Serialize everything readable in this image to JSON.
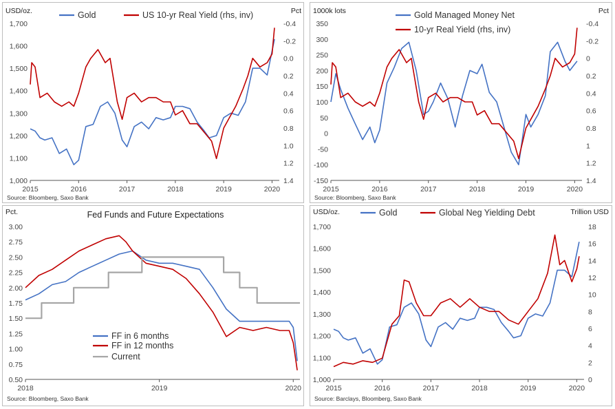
{
  "colors": {
    "blue": "#4472c4",
    "red": "#c00000",
    "gray": "#a6a6a6",
    "axis": "#555555"
  },
  "chart_data": [
    {
      "type": "line",
      "title": "",
      "ylabel_left": "USD/oz.",
      "ylabel_right": "Pct",
      "xlim": [
        2015.0,
        2020.15
      ],
      "x_ticks": [
        2015,
        2016,
        2017,
        2018,
        2019,
        2020
      ],
      "x_tick_labels": [
        "2015",
        "2016",
        "2017",
        "2018",
        "2019",
        "2020"
      ],
      "ylim_left": [
        1000,
        1700
      ],
      "y_ticks_left": [
        1000,
        1100,
        1200,
        1300,
        1400,
        1500,
        1600,
        1700
      ],
      "y_tick_labels_left": [
        "1,000",
        "1,100",
        "1,200",
        "1,300",
        "1,400",
        "1,500",
        "1,600",
        "1,700"
      ],
      "ylim_right": [
        1.4,
        -0.4
      ],
      "right_axis_inverted": true,
      "y_ticks_right": [
        -0.4,
        -0.2,
        0.0,
        0.2,
        0.4,
        0.6,
        0.8,
        1.0,
        1.2,
        1.4
      ],
      "y_tick_labels_right": [
        "-0.4",
        "-0.2",
        "0.0",
        "0.2",
        "0.4",
        "0.6",
        "0.8",
        "1.0",
        "1.2",
        "1.4"
      ],
      "source": "Source: Bloomberg, Saxo Bank",
      "series": [
        {
          "name": "Gold",
          "axis": "left",
          "color": "#4472c4",
          "x": [
            2015.0,
            2015.1,
            2015.2,
            2015.3,
            2015.45,
            2015.6,
            2015.75,
            2015.9,
            2016.0,
            2016.15,
            2016.3,
            2016.45,
            2016.6,
            2016.75,
            2016.9,
            2017.0,
            2017.15,
            2017.3,
            2017.45,
            2017.6,
            2017.75,
            2017.9,
            2018.0,
            2018.15,
            2018.3,
            2018.45,
            2018.6,
            2018.7,
            2018.85,
            2019.0,
            2019.15,
            2019.3,
            2019.45,
            2019.6,
            2019.75,
            2019.9,
            2020.05
          ],
          "values": [
            1230,
            1220,
            1190,
            1180,
            1190,
            1120,
            1140,
            1070,
            1090,
            1240,
            1250,
            1330,
            1350,
            1300,
            1180,
            1150,
            1240,
            1260,
            1230,
            1280,
            1270,
            1280,
            1330,
            1330,
            1320,
            1260,
            1220,
            1190,
            1200,
            1280,
            1300,
            1290,
            1350,
            1500,
            1500,
            1470,
            1630
          ]
        },
        {
          "name": "US 10-yr Real Yield (rhs, inv)",
          "axis": "right",
          "color": "#c00000",
          "x": [
            2015.0,
            2015.03,
            2015.1,
            2015.2,
            2015.35,
            2015.5,
            2015.65,
            2015.8,
            2015.9,
            2016.0,
            2016.15,
            2016.25,
            2016.4,
            2016.55,
            2016.65,
            2016.8,
            2016.9,
            2017.0,
            2017.15,
            2017.3,
            2017.45,
            2017.6,
            2017.75,
            2017.9,
            2018.0,
            2018.15,
            2018.3,
            2018.45,
            2018.6,
            2018.75,
            2018.85,
            2019.0,
            2019.1,
            2019.25,
            2019.4,
            2019.5,
            2019.6,
            2019.75,
            2019.9,
            2020.0,
            2020.05
          ],
          "values": [
            0.3,
            0.05,
            0.1,
            0.45,
            0.4,
            0.5,
            0.55,
            0.5,
            0.55,
            0.4,
            0.1,
            0.0,
            -0.1,
            0.05,
            0.0,
            0.5,
            0.7,
            0.45,
            0.4,
            0.5,
            0.45,
            0.45,
            0.5,
            0.5,
            0.65,
            0.6,
            0.75,
            0.75,
            0.85,
            0.95,
            1.15,
            0.8,
            0.7,
            0.55,
            0.35,
            0.2,
            0.0,
            0.1,
            0.05,
            -0.05,
            -0.35
          ]
        }
      ]
    },
    {
      "type": "line",
      "title": "",
      "ylabel_left": "1000k lots",
      "ylabel_right": "Pct",
      "xlim": [
        2015.0,
        2020.15
      ],
      "x_ticks": [
        2015,
        2016,
        2017,
        2018,
        2019,
        2020
      ],
      "x_tick_labels": [
        "2015",
        "2016",
        "2017",
        "2018",
        "2019",
        "2020"
      ],
      "ylim_left": [
        -150,
        350
      ],
      "y_ticks_left": [
        -150,
        -100,
        -50,
        0,
        50,
        100,
        150,
        200,
        250,
        300,
        350
      ],
      "y_tick_labels_left": [
        "-150",
        "-100",
        "-50",
        "0",
        "50",
        "100",
        "150",
        "200",
        "250",
        "300",
        "350"
      ],
      "ylim_right": [
        1.4,
        -0.4
      ],
      "right_axis_inverted": true,
      "y_ticks_right": [
        -0.4,
        -0.2,
        0.0,
        0.2,
        0.4,
        0.6,
        0.8,
        1.0,
        1.2,
        1.4
      ],
      "y_tick_labels_right": [
        "-0.4",
        "-0.2",
        "0",
        "0.2",
        "0.4",
        "0.6",
        "0.8",
        "1",
        "1.2",
        "1.4"
      ],
      "source": "Source: Bloomberg, Saxo Bank",
      "series": [
        {
          "name": "Gold Managed Money Net",
          "axis": "left",
          "color": "#4472c4",
          "x": [
            2015.0,
            2015.1,
            2015.2,
            2015.35,
            2015.5,
            2015.65,
            2015.8,
            2015.9,
            2016.0,
            2016.15,
            2016.3,
            2016.45,
            2016.6,
            2016.75,
            2016.9,
            2017.0,
            2017.1,
            2017.25,
            2017.4,
            2017.55,
            2017.7,
            2017.85,
            2018.0,
            2018.1,
            2018.25,
            2018.4,
            2018.55,
            2018.7,
            2018.85,
            2019.0,
            2019.1,
            2019.25,
            2019.4,
            2019.5,
            2019.65,
            2019.8,
            2019.9,
            2020.05
          ],
          "values": [
            100,
            190,
            140,
            80,
            30,
            -20,
            20,
            -30,
            10,
            160,
            210,
            270,
            290,
            200,
            60,
            70,
            100,
            160,
            110,
            20,
            120,
            200,
            190,
            220,
            130,
            100,
            20,
            -60,
            -100,
            60,
            20,
            60,
            120,
            260,
            290,
            230,
            200,
            230
          ]
        },
        {
          "name": "10-yr Real Yield (rhs, inv)",
          "axis": "right",
          "color": "#c00000",
          "x": [
            2015.0,
            2015.03,
            2015.1,
            2015.2,
            2015.35,
            2015.5,
            2015.65,
            2015.8,
            2015.9,
            2016.0,
            2016.15,
            2016.25,
            2016.4,
            2016.55,
            2016.65,
            2016.8,
            2016.9,
            2017.0,
            2017.15,
            2017.3,
            2017.45,
            2017.6,
            2017.75,
            2017.9,
            2018.0,
            2018.15,
            2018.3,
            2018.45,
            2018.6,
            2018.75,
            2018.85,
            2019.0,
            2019.1,
            2019.25,
            2019.4,
            2019.5,
            2019.6,
            2019.75,
            2019.9,
            2020.0,
            2020.05
          ],
          "values": [
            0.3,
            0.05,
            0.1,
            0.45,
            0.4,
            0.5,
            0.55,
            0.5,
            0.55,
            0.4,
            0.1,
            0.0,
            -0.1,
            0.05,
            0.0,
            0.5,
            0.7,
            0.45,
            0.4,
            0.5,
            0.45,
            0.45,
            0.5,
            0.5,
            0.65,
            0.6,
            0.75,
            0.75,
            0.85,
            0.95,
            1.15,
            0.8,
            0.7,
            0.55,
            0.35,
            0.2,
            0.0,
            0.1,
            0.05,
            -0.05,
            -0.35
          ]
        }
      ]
    },
    {
      "type": "line",
      "title": "Fed Funds and Future Expectations",
      "ylabel_left": "Pct.",
      "ylabel_right": "",
      "xlim": [
        2018.0,
        2020.05
      ],
      "x_ticks": [
        2018,
        2019,
        2020
      ],
      "x_tick_labels": [
        "2018",
        "2019",
        "2020"
      ],
      "ylim_left": [
        0.5,
        3.0
      ],
      "y_ticks_left": [
        0.5,
        0.75,
        1.0,
        1.25,
        1.5,
        1.75,
        2.0,
        2.25,
        2.5,
        2.75,
        3.0
      ],
      "y_tick_labels_left": [
        "0.50",
        "0.75",
        "1.00",
        "1.25",
        "1.50",
        "1.75",
        "2.00",
        "2.25",
        "2.50",
        "2.75",
        "3.00"
      ],
      "source": "Source: Bloomberg, Saxo Bank",
      "legend_position": "bottom-center",
      "series": [
        {
          "name": "FF in 6 months",
          "axis": "left",
          "color": "#4472c4",
          "x": [
            2018.0,
            2018.1,
            2018.2,
            2018.3,
            2018.4,
            2018.5,
            2018.6,
            2018.7,
            2018.8,
            2018.9,
            2019.0,
            2019.1,
            2019.2,
            2019.3,
            2019.4,
            2019.5,
            2019.6,
            2019.7,
            2019.8,
            2019.9,
            2019.97,
            2020.0,
            2020.03
          ],
          "values": [
            1.8,
            1.9,
            2.05,
            2.1,
            2.25,
            2.35,
            2.45,
            2.55,
            2.6,
            2.45,
            2.4,
            2.4,
            2.35,
            2.3,
            2.0,
            1.65,
            1.45,
            1.45,
            1.45,
            1.45,
            1.45,
            1.35,
            0.8
          ]
        },
        {
          "name": "FF in 12 months",
          "axis": "left",
          "color": "#c00000",
          "x": [
            2018.0,
            2018.1,
            2018.2,
            2018.3,
            2018.4,
            2018.5,
            2018.6,
            2018.7,
            2018.75,
            2018.8,
            2018.9,
            2019.0,
            2019.1,
            2019.2,
            2019.3,
            2019.4,
            2019.5,
            2019.6,
            2019.7,
            2019.8,
            2019.9,
            2019.97,
            2020.0,
            2020.03
          ],
          "values": [
            2.0,
            2.2,
            2.3,
            2.45,
            2.6,
            2.7,
            2.8,
            2.85,
            2.75,
            2.6,
            2.4,
            2.35,
            2.3,
            2.15,
            1.9,
            1.6,
            1.2,
            1.35,
            1.3,
            1.35,
            1.3,
            1.3,
            1.1,
            0.65
          ]
        },
        {
          "name": "Current",
          "axis": "left",
          "color": "#a6a6a6",
          "step": true,
          "x": [
            2018.0,
            2018.12,
            2018.12,
            2018.36,
            2018.36,
            2018.62,
            2018.62,
            2018.87,
            2018.87,
            2019.48,
            2019.48,
            2019.6,
            2019.6,
            2019.73,
            2019.73,
            2020.05
          ],
          "values": [
            1.5,
            1.5,
            1.75,
            1.75,
            2.0,
            2.0,
            2.25,
            2.25,
            2.5,
            2.5,
            2.25,
            2.25,
            2.0,
            2.0,
            1.75,
            1.75
          ]
        }
      ]
    },
    {
      "type": "line",
      "title": "",
      "ylabel_left": "USD/oz.",
      "ylabel_right": "Trillion USD",
      "xlim": [
        2015.0,
        2020.15
      ],
      "x_ticks": [
        2015,
        2016,
        2017,
        2018,
        2019,
        2020
      ],
      "x_tick_labels": [
        "2015",
        "2016",
        "2017",
        "2018",
        "2019",
        "2020"
      ],
      "ylim_left": [
        1000,
        1700
      ],
      "y_ticks_left": [
        1000,
        1100,
        1200,
        1300,
        1400,
        1500,
        1600,
        1700
      ],
      "y_tick_labels_left": [
        "1,000",
        "1,100",
        "1,200",
        "1,300",
        "1,400",
        "1,500",
        "1,600",
        "1,700"
      ],
      "ylim_right": [
        0,
        18
      ],
      "y_ticks_right": [
        0,
        2,
        4,
        6,
        8,
        10,
        12,
        14,
        16,
        18
      ],
      "y_tick_labels_right": [
        "0",
        "2",
        "4",
        "6",
        "8",
        "10",
        "12",
        "14",
        "16",
        "18"
      ],
      "source": "Source: Barclays, Bloomberg, Saxo Bank",
      "series": [
        {
          "name": "Gold",
          "axis": "left",
          "color": "#4472c4",
          "x": [
            2015.0,
            2015.1,
            2015.2,
            2015.3,
            2015.45,
            2015.6,
            2015.75,
            2015.9,
            2016.0,
            2016.15,
            2016.3,
            2016.45,
            2016.6,
            2016.75,
            2016.9,
            2017.0,
            2017.15,
            2017.3,
            2017.45,
            2017.6,
            2017.75,
            2017.9,
            2018.0,
            2018.15,
            2018.3,
            2018.45,
            2018.6,
            2018.7,
            2018.85,
            2019.0,
            2019.15,
            2019.3,
            2019.45,
            2019.6,
            2019.75,
            2019.9,
            2020.05
          ],
          "values": [
            1230,
            1220,
            1190,
            1180,
            1190,
            1120,
            1140,
            1070,
            1090,
            1240,
            1250,
            1330,
            1350,
            1300,
            1180,
            1150,
            1240,
            1260,
            1230,
            1280,
            1270,
            1280,
            1330,
            1330,
            1320,
            1260,
            1220,
            1190,
            1200,
            1280,
            1300,
            1290,
            1350,
            1500,
            1500,
            1470,
            1630
          ]
        },
        {
          "name": "Global Neg Yielding Debt",
          "axis": "right",
          "color": "#c00000",
          "x": [
            2015.0,
            2015.2,
            2015.4,
            2015.6,
            2015.8,
            2016.0,
            2016.2,
            2016.35,
            2016.45,
            2016.55,
            2016.7,
            2016.85,
            2017.0,
            2017.2,
            2017.4,
            2017.6,
            2017.8,
            2018.0,
            2018.2,
            2018.4,
            2018.6,
            2018.8,
            2019.0,
            2019.2,
            2019.4,
            2019.55,
            2019.65,
            2019.75,
            2019.9,
            2020.0,
            2020.05
          ],
          "values": [
            1.5,
            2.0,
            1.8,
            2.2,
            2.0,
            2.5,
            6.5,
            7.5,
            11.7,
            11.5,
            9.0,
            7.5,
            7.5,
            9.0,
            9.5,
            8.5,
            9.5,
            8.5,
            8.0,
            8.0,
            7.0,
            6.5,
            8.0,
            9.5,
            12.5,
            17.0,
            13.5,
            14.0,
            11.5,
            13.0,
            14.5
          ]
        }
      ]
    }
  ]
}
